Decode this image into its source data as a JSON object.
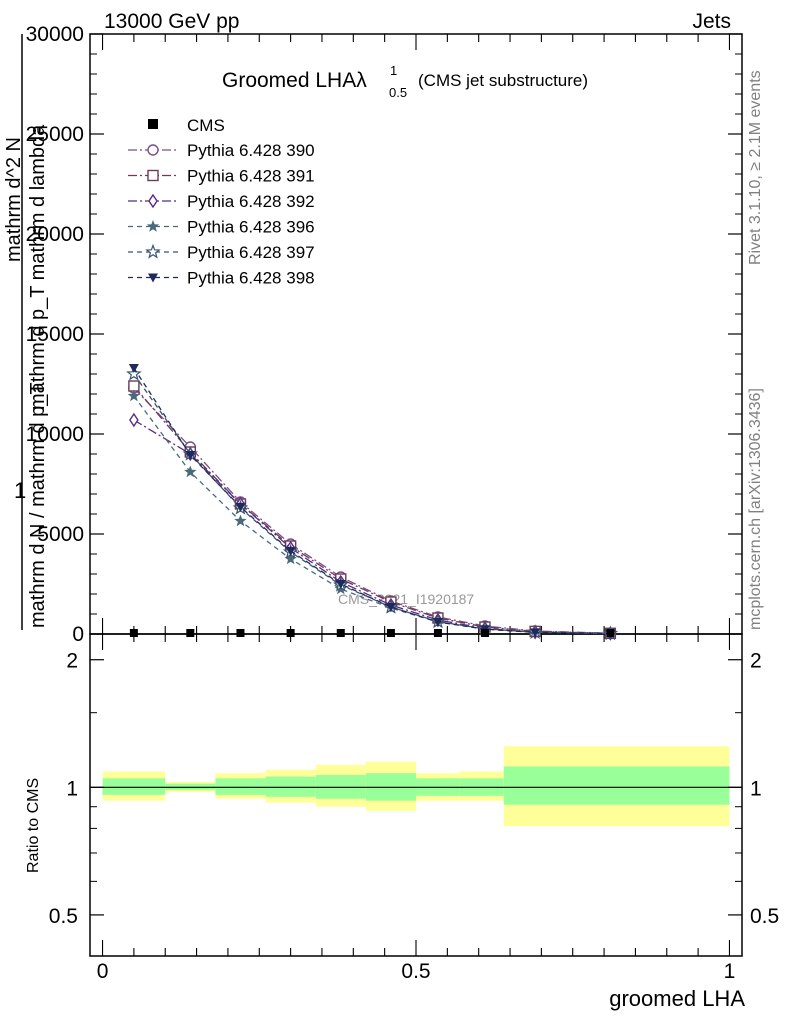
{
  "header": {
    "left": "13000 GeV pp",
    "right": "Jets"
  },
  "title": {
    "main": "Groomed LHAλ",
    "sup": "1",
    "sub": "0.5",
    "suffix": "(CMS jet substructure)"
  },
  "side_labels": {
    "rivet": "Rivet 3.1.10, ≥ 2.1M events",
    "mcplots": "mcplots.cern.ch [arXiv:1306.3436]"
  },
  "watermark": "CMS_2021_I1920187",
  "colors": {
    "p390": "#7b4e8a",
    "p391": "#6e3a55",
    "p392": "#5a2a85",
    "p396": "#4a6a7a",
    "p397": "#3a5570",
    "p398": "#1e2a5a",
    "band_inner": "#99ff99",
    "band_outer": "#ffff99"
  },
  "chart_data": [
    {
      "type": "line",
      "title": "",
      "ylabel_fragments": [
        "1",
        "mathrm d N / mathrm d p_T",
        "mathrm d^2 N",
        "mathrm d p_T mathrm d lambda"
      ],
      "ylim": [
        0,
        30000
      ],
      "yticks": [
        0,
        5000,
        10000,
        15000,
        20000,
        25000,
        30000
      ],
      "ytick_labels": [
        "0",
        "5000",
        "10000",
        "15000",
        "20000",
        "25000",
        "30000"
      ],
      "xlim": [
        -0.02,
        1.02
      ],
      "legend_position": "top-left",
      "cms": {
        "name": "CMS",
        "x": [
          0.05,
          0.14,
          0.22,
          0.3,
          0.38,
          0.46,
          0.535,
          0.61,
          0.81
        ],
        "y": [
          0,
          0,
          0,
          0,
          0,
          0,
          0,
          0,
          0
        ]
      },
      "series": [
        {
          "name": "Pythia 6.428 390",
          "marker": "circle-open",
          "color_key": "p390",
          "x": [
            0.05,
            0.14,
            0.22,
            0.3,
            0.38,
            0.46,
            0.535,
            0.61,
            0.69,
            0.81
          ],
          "y": [
            12300,
            9350,
            6600,
            4500,
            2850,
            1650,
            850,
            400,
            150,
            40
          ]
        },
        {
          "name": "Pythia 6.428 391",
          "marker": "square-open",
          "color_key": "p391",
          "x": [
            0.05,
            0.14,
            0.22,
            0.3,
            0.38,
            0.46,
            0.535,
            0.61,
            0.69,
            0.81
          ],
          "y": [
            12400,
            9100,
            6500,
            4400,
            2750,
            1600,
            800,
            350,
            130,
            35
          ]
        },
        {
          "name": "Pythia 6.428 392",
          "marker": "diamond-open",
          "color_key": "p392",
          "x": [
            0.05,
            0.14,
            0.22,
            0.3,
            0.38,
            0.46,
            0.535,
            0.61,
            0.69,
            0.81
          ],
          "y": [
            10700,
            9000,
            6500,
            4300,
            2600,
            1450,
            700,
            280,
            90,
            25
          ]
        },
        {
          "name": "Pythia 6.428 396",
          "marker": "star-filled",
          "color_key": "p396",
          "x": [
            0.05,
            0.14,
            0.22,
            0.3,
            0.38,
            0.46,
            0.535,
            0.61,
            0.69,
            0.81
          ],
          "y": [
            11900,
            8100,
            5650,
            3750,
            2250,
            1300,
            600,
            250,
            80,
            20
          ]
        },
        {
          "name": "Pythia 6.428 397",
          "marker": "star-open",
          "color_key": "p397",
          "x": [
            0.05,
            0.14,
            0.22,
            0.3,
            0.38,
            0.46,
            0.535,
            0.61,
            0.69,
            0.81
          ],
          "y": [
            13000,
            9000,
            6300,
            4100,
            2450,
            1350,
            620,
            260,
            85,
            22
          ]
        },
        {
          "name": "Pythia 6.428 398",
          "marker": "triangle-down-filled",
          "color_key": "p398",
          "x": [
            0.05,
            0.14,
            0.22,
            0.3,
            0.38,
            0.46,
            0.535,
            0.61,
            0.69,
            0.81
          ],
          "y": [
            13300,
            8950,
            6350,
            4150,
            2500,
            1350,
            600,
            240,
            80,
            20
          ]
        }
      ]
    },
    {
      "type": "area",
      "ylabel": "Ratio to CMS",
      "xlabel": "groomed LHA",
      "ylim": [
        0.4,
        2.3
      ],
      "yscale": "log",
      "yticks": [
        0.5,
        1,
        2
      ],
      "ytick_labels": [
        "0.5",
        "1",
        "2"
      ],
      "xlim": [
        -0.02,
        1.02
      ],
      "xticks": [
        0,
        0.5,
        1
      ],
      "xtick_labels": [
        "0",
        "0.5",
        "1"
      ],
      "reference": 1,
      "bins": [
        {
          "x0": 0.0,
          "x1": 0.1,
          "inner": [
            0.96,
            1.05
          ],
          "outer": [
            0.93,
            1.09
          ]
        },
        {
          "x0": 0.1,
          "x1": 0.18,
          "inner": [
            0.985,
            1.02
          ],
          "outer": [
            0.975,
            1.03
          ]
        },
        {
          "x0": 0.18,
          "x1": 0.26,
          "inner": [
            0.96,
            1.05
          ],
          "outer": [
            0.94,
            1.08
          ]
        },
        {
          "x0": 0.26,
          "x1": 0.34,
          "inner": [
            0.95,
            1.06
          ],
          "outer": [
            0.92,
            1.1
          ]
        },
        {
          "x0": 0.34,
          "x1": 0.42,
          "inner": [
            0.94,
            1.07
          ],
          "outer": [
            0.9,
            1.13
          ]
        },
        {
          "x0": 0.42,
          "x1": 0.5,
          "inner": [
            0.93,
            1.08
          ],
          "outer": [
            0.88,
            1.15
          ]
        },
        {
          "x0": 0.5,
          "x1": 0.57,
          "inner": [
            0.955,
            1.05
          ],
          "outer": [
            0.93,
            1.08
          ]
        },
        {
          "x0": 0.57,
          "x1": 0.64,
          "inner": [
            0.955,
            1.05
          ],
          "outer": [
            0.93,
            1.09
          ]
        },
        {
          "x0": 0.64,
          "x1": 1.0,
          "inner": [
            0.91,
            1.12
          ],
          "outer": [
            0.81,
            1.25
          ]
        }
      ]
    }
  ]
}
